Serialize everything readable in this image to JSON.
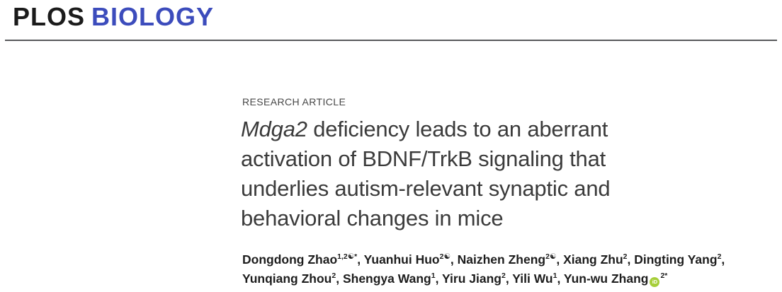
{
  "journal": {
    "logo_plain": "PLOS",
    "logo_accent": "BIOLOGY",
    "accent_color": "#3C4CBC"
  },
  "article": {
    "kicker": "RESEARCH ARTICLE",
    "title": {
      "line1_italic": "Mdga2",
      "line1_rest": " deficiency leads to an aberrant",
      "line2": "activation of BDNF/TrkB signaling that",
      "line3": "underlies autism-relevant synaptic and",
      "line4": "behavioral changes in mice"
    },
    "orcid_label": "iD",
    "orcid_color": "#A6CE39",
    "authors": {
      "line1": [
        {
          "name": "Dongdong Zhao",
          "sup": "1,2☯*",
          "sep": ", "
        },
        {
          "name": "Yuanhui Huo",
          "sup": "2☯",
          "sep": ", "
        },
        {
          "name": "Naizhen Zheng",
          "sup": "2☯",
          "sep": ", "
        },
        {
          "name": "Xiang Zhu",
          "sup": "2",
          "sep": ", "
        },
        {
          "name": "Dingting Yang",
          "sup": "2",
          "sep": ","
        }
      ],
      "line2": [
        {
          "name": "Yunqiang Zhou",
          "sup": "2",
          "sep": ", "
        },
        {
          "name": "Shengya Wang",
          "sup": "1",
          "sep": ", "
        },
        {
          "name": "Yiru Jiang",
          "sup": "2",
          "sep": ", "
        },
        {
          "name": "Yili Wu",
          "sup": "1",
          "sep": ", "
        },
        {
          "name": "Yun-wu Zhang",
          "orcid": true,
          "sup": "2*",
          "sep": ""
        }
      ]
    }
  }
}
